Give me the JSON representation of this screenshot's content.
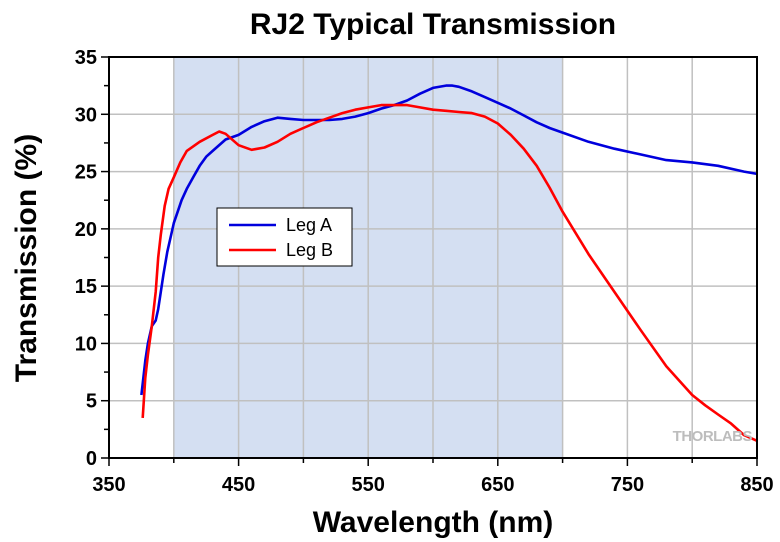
{
  "chart_data": {
    "type": "line",
    "title": "RJ2 Typical Transmission",
    "xlabel": "Wavelength (nm)",
    "ylabel": "Transmission (%)",
    "xlim": [
      350,
      850
    ],
    "ylim": [
      0,
      35
    ],
    "xticks": [
      350,
      450,
      550,
      650,
      750,
      850
    ],
    "yticks": [
      0,
      5,
      10,
      15,
      20,
      25,
      30,
      35
    ],
    "grid": true,
    "shaded_region": [
      400,
      700
    ],
    "legend_position": "upper-left inside plot",
    "watermark": "THORLABS",
    "series": [
      {
        "name": "Leg A",
        "color": "#0000dd",
        "x": [
          375,
          378,
          380,
          383,
          386,
          388,
          390,
          392,
          395,
          398,
          400,
          403,
          406,
          410,
          415,
          420,
          425,
          430,
          440,
          450,
          460,
          470,
          480,
          490,
          500,
          510,
          520,
          530,
          540,
          550,
          560,
          570,
          580,
          590,
          600,
          610,
          615,
          620,
          630,
          640,
          650,
          660,
          670,
          680,
          690,
          700,
          720,
          740,
          760,
          780,
          800,
          820,
          840,
          850
        ],
        "y": [
          5.5,
          8.5,
          10.0,
          11.5,
          12.0,
          13.0,
          14.5,
          16.0,
          18.0,
          19.5,
          20.5,
          21.5,
          22.5,
          23.5,
          24.5,
          25.5,
          26.3,
          26.8,
          27.8,
          28.2,
          28.9,
          29.4,
          29.7,
          29.6,
          29.5,
          29.5,
          29.5,
          29.6,
          29.8,
          30.1,
          30.5,
          30.8,
          31.2,
          31.8,
          32.3,
          32.5,
          32.5,
          32.4,
          32.0,
          31.5,
          31.0,
          30.5,
          29.9,
          29.3,
          28.8,
          28.4,
          27.6,
          27.0,
          26.5,
          26.0,
          25.8,
          25.5,
          25.0,
          24.8
        ]
      },
      {
        "name": "Leg B",
        "color": "#ff0000",
        "x": [
          376,
          378,
          380,
          383,
          386,
          388,
          390,
          393,
          396,
          400,
          405,
          410,
          420,
          430,
          435,
          440,
          450,
          460,
          470,
          480,
          490,
          500,
          510,
          520,
          530,
          540,
          550,
          560,
          570,
          580,
          590,
          600,
          610,
          620,
          630,
          640,
          650,
          660,
          670,
          680,
          690,
          700,
          720,
          740,
          760,
          780,
          800,
          810,
          820,
          830,
          840,
          850
        ],
        "y": [
          3.5,
          7.0,
          9.0,
          11.5,
          14.5,
          17.5,
          19.5,
          22.0,
          23.5,
          24.5,
          25.8,
          26.8,
          27.6,
          28.2,
          28.5,
          28.3,
          27.3,
          26.9,
          27.1,
          27.6,
          28.3,
          28.8,
          29.3,
          29.7,
          30.1,
          30.4,
          30.6,
          30.8,
          30.8,
          30.8,
          30.6,
          30.4,
          30.3,
          30.2,
          30.1,
          29.8,
          29.2,
          28.2,
          27.0,
          25.5,
          23.6,
          21.5,
          17.8,
          14.5,
          11.2,
          8.0,
          5.5,
          4.6,
          3.8,
          3.0,
          2.0,
          1.5
        ]
      }
    ]
  }
}
